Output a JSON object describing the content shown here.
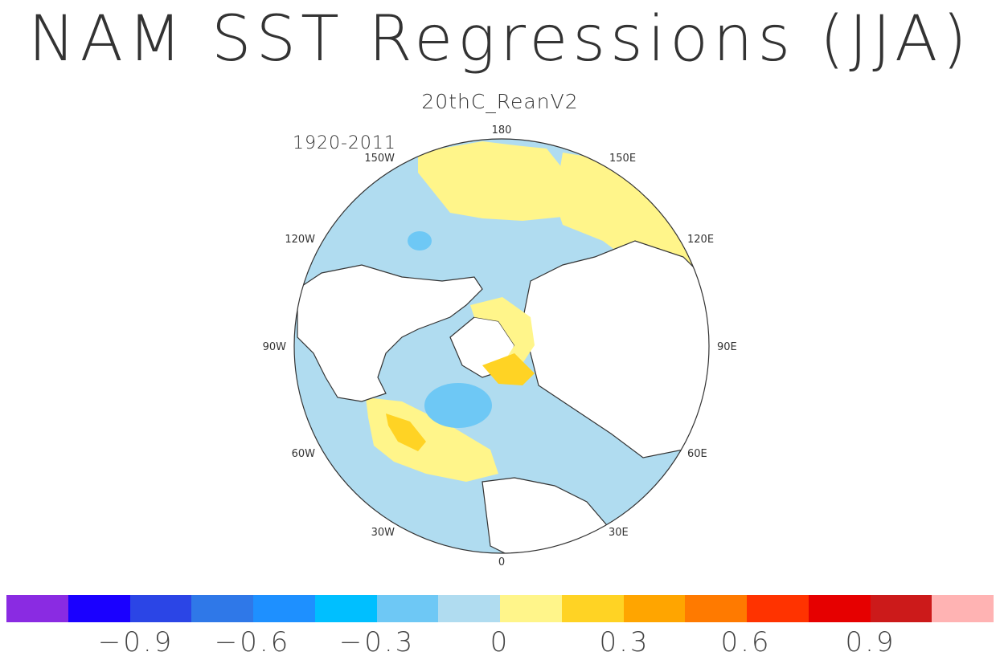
{
  "title": "NAM SST Regressions (JJA)",
  "subtitle": "20thC_ReanV2",
  "period": "1920-2011",
  "lon_labels": [
    "180",
    "150E",
    "120E",
    "90E",
    "60E",
    "30E",
    "0",
    "30W",
    "60W",
    "90W",
    "120W",
    "150W"
  ],
  "colorbar": {
    "colors": [
      "#8a2be2",
      "#1a00ff",
      "#2b45e6",
      "#2f78e8",
      "#1e90ff",
      "#00bfff",
      "#6ec8f5",
      "#b0dcf0",
      "#fff58a",
      "#ffd324",
      "#ffa500",
      "#ff7a00",
      "#ff3300",
      "#e60000",
      "#cc1a1a",
      "#ffb3b3"
    ],
    "ticks": [
      "−0.9",
      "−0.6",
      "−0.3",
      "0",
      "0.3",
      "0.6",
      "0.9"
    ]
  }
}
